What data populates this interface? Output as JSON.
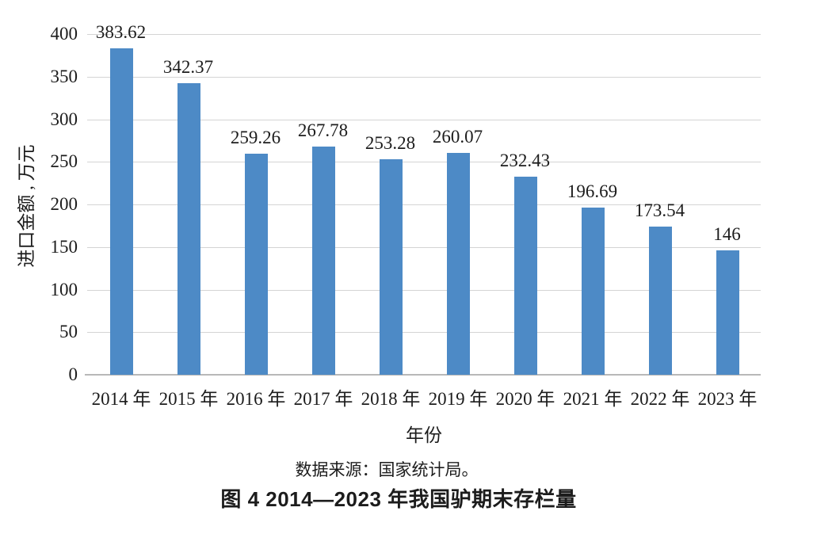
{
  "chart_data": {
    "type": "bar",
    "categories": [
      "2014 年",
      "2015 年",
      "2016 年",
      "2017 年",
      "2018 年",
      "2019 年",
      "2020 年",
      "2021 年",
      "2022 年",
      "2023 年"
    ],
    "values": [
      383.62,
      342.37,
      259.26,
      267.78,
      253.28,
      260.07,
      232.43,
      196.69,
      173.54,
      146
    ],
    "value_labels": [
      "383.62",
      "342.37",
      "259.26",
      "267.78",
      "253.28",
      "260.07",
      "232.43",
      "196.69",
      "173.54",
      "146"
    ],
    "title": "",
    "xlabel": "年份",
    "ylabel": "进口金额 , 万元",
    "ylim": [
      0,
      400
    ],
    "yticks": [
      0,
      50,
      100,
      150,
      200,
      250,
      300,
      350,
      400
    ],
    "grid": "horizontal gridlines on, at every 50",
    "legend_position": "none",
    "bar_color": "#4d8ac6",
    "gridline_color": "#d4d4d4"
  },
  "source_note": "数据来源：国家统计局。",
  "caption": "图 4  2014—2023 年我国驴期末存栏量"
}
